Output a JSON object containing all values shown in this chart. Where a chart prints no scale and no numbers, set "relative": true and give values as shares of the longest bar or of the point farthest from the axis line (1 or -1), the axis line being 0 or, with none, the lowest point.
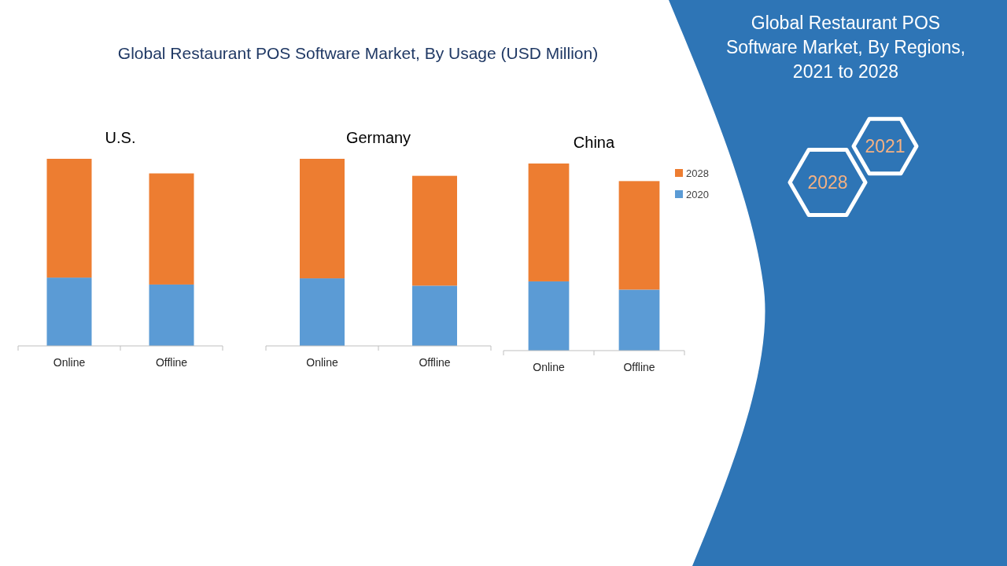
{
  "chart_data": [
    {
      "type": "other",
      "title": "Global Restaurant POS Software Market, By Usage (USD Million)"
    },
    {
      "type": "bar",
      "title": "U.S.",
      "stacked": true,
      "relative": true,
      "legend": false,
      "categories": [
        "Online",
        "Offline"
      ],
      "series": [
        {
          "color": "#5b9bd5",
          "values": [
            0.365,
            0.328
          ]
        },
        {
          "color": "#ed7d31",
          "values": [
            0.635,
            0.594
          ]
        }
      ]
    },
    {
      "type": "bar",
      "title": "Germany",
      "stacked": true,
      "relative": true,
      "legend": false,
      "categories": [
        "Online",
        "Offline"
      ],
      "series": [
        {
          "color": "#5b9bd5",
          "values": [
            0.361,
            0.322
          ]
        },
        {
          "color": "#ed7d31",
          "values": [
            0.639,
            0.587
          ]
        }
      ]
    },
    {
      "type": "bar",
      "title": "China",
      "stacked": true,
      "relative": true,
      "legend": "right",
      "categories": [
        "Online",
        "Offline"
      ],
      "series": [
        {
          "name": "2020",
          "color": "#5b9bd5",
          "values": [
            0.37,
            0.326
          ]
        },
        {
          "name": "2028",
          "color": "#ed7d31",
          "values": [
            0.63,
            0.58
          ]
        }
      ]
    },
    {
      "type": "other",
      "title": "Global Restaurant POS Software Market, By Regions, 2021 to 2028",
      "annotations": [
        "2021",
        "2028"
      ]
    }
  ]
}
